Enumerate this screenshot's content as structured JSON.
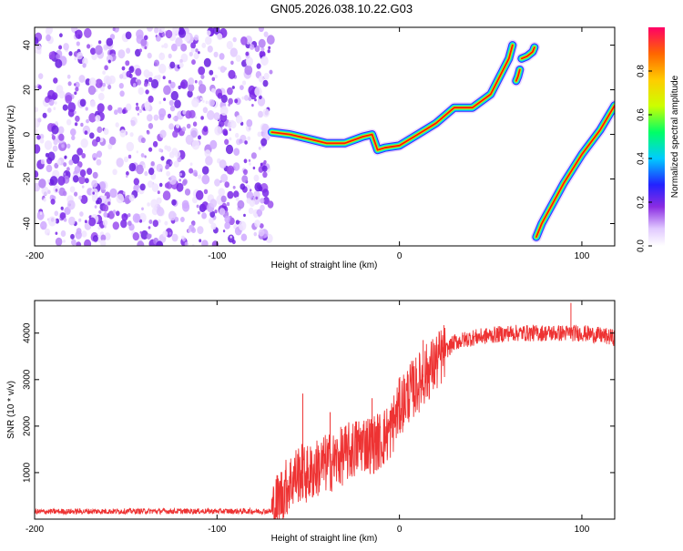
{
  "title": "GN05.2026.038.10.22.G03",
  "chart_data": [
    {
      "type": "heatmap",
      "xlabel": "Height of straight line (km)",
      "ylabel": "Frequency (Hz)",
      "xlim": [
        -200,
        118
      ],
      "ylim": [
        -50,
        48
      ],
      "xticks": [
        -200,
        -100,
        0,
        100
      ],
      "yticks": [
        -40,
        -20,
        0,
        20,
        40
      ],
      "colorbar": {
        "label": "Normalized spectral amplitude",
        "range": [
          0,
          1
        ],
        "ticks": [
          0.0,
          0.2,
          0.4,
          0.6,
          0.8
        ]
      },
      "noise_region_x": [
        -200,
        -70
      ],
      "ridges": [
        {
          "x": [
            -70,
            -60,
            -50,
            -40,
            -30,
            -20,
            -15,
            -12,
            -8,
            0,
            10,
            20,
            30,
            40,
            50,
            55,
            60,
            62
          ],
          "y": [
            1,
            0,
            -2,
            -4,
            -4,
            -1,
            0,
            -7,
            -6,
            -5,
            0,
            5,
            12,
            12,
            18,
            26,
            34,
            40
          ]
        },
        {
          "x": [
            64,
            65,
            66
          ],
          "y": [
            24,
            26,
            29
          ]
        },
        {
          "x": [
            67,
            70,
            73,
            74
          ],
          "y": [
            34,
            35,
            37,
            39
          ]
        },
        {
          "x": [
            75,
            78,
            82,
            90,
            100,
            110,
            118
          ],
          "y": [
            -46,
            -40,
            -34,
            -22,
            -9,
            2,
            13
          ]
        }
      ]
    },
    {
      "type": "line",
      "xlabel": "Height of straight line (km)",
      "ylabel": "SNR (10 * v/v)",
      "xlim": [
        -200,
        118
      ],
      "ylim": [
        0,
        4700
      ],
      "xticks": [
        -200,
        -100,
        0,
        100
      ],
      "yticks": [
        1000,
        2000,
        3000,
        4000
      ],
      "color": "#ee3333",
      "series": [
        {
          "x": [
            -200,
            -150,
            -100,
            -70,
            -65,
            -60,
            -55,
            -50,
            -45,
            -40,
            -35,
            -30,
            -25,
            -20,
            -15,
            -10,
            -5,
            0,
            5,
            10,
            15,
            20,
            25,
            30,
            40,
            50,
            60,
            70,
            80,
            90,
            100,
            110,
            118
          ],
          "y": [
            160,
            170,
            170,
            170,
            500,
            800,
            1000,
            950,
            1100,
            1200,
            1250,
            1400,
            1500,
            1650,
            1600,
            1700,
            1900,
            2400,
            2700,
            2900,
            3150,
            3350,
            3600,
            3800,
            3900,
            3950,
            4000,
            4000,
            4000,
            4000,
            4000,
            3950,
            3900
          ]
        }
      ],
      "spikes": [
        {
          "x": -53,
          "y": 2700
        },
        {
          "x": -38,
          "y": 2300
        },
        {
          "x": -15,
          "y": 2600
        },
        {
          "x": 13,
          "y": 3850
        },
        {
          "x": 94,
          "y": 4650
        }
      ]
    }
  ]
}
